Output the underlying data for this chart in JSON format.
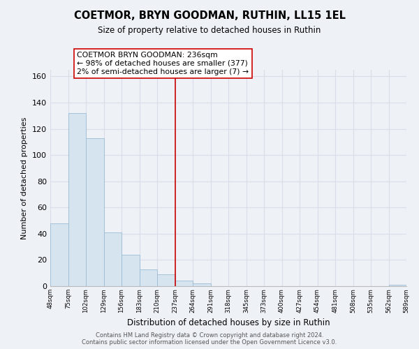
{
  "title": "COETMOR, BRYN GOODMAN, RUTHIN, LL15 1EL",
  "subtitle": "Size of property relative to detached houses in Ruthin",
  "xlabel": "Distribution of detached houses by size in Ruthin",
  "ylabel": "Number of detached properties",
  "bar_values": [
    48,
    132,
    113,
    41,
    24,
    13,
    9,
    4,
    2,
    0,
    0,
    0,
    0,
    0,
    0,
    0,
    0,
    0,
    0,
    1
  ],
  "bar_labels": [
    "48sqm",
    "75sqm",
    "102sqm",
    "129sqm",
    "156sqm",
    "183sqm",
    "210sqm",
    "237sqm",
    "264sqm",
    "291sqm",
    "318sqm",
    "345sqm",
    "373sqm",
    "400sqm",
    "427sqm",
    "454sqm",
    "481sqm",
    "508sqm",
    "535sqm",
    "562sqm",
    "589sqm"
  ],
  "bar_color": "#d6e4f0",
  "bar_edge_color": "#9bbcd4",
  "vline_color": "#cc0000",
  "annotation_title": "COETMOR BRYN GOODMAN: 236sqm",
  "annotation_line2": "← 98% of detached houses are smaller (377)",
  "annotation_line3": "2% of semi-detached houses are larger (7) →",
  "annotation_box_color": "#ffffff",
  "annotation_box_edge": "#cc0000",
  "ylim": [
    0,
    165
  ],
  "yticks": [
    0,
    20,
    40,
    60,
    80,
    100,
    120,
    140,
    160
  ],
  "background_color": "#eef2f7",
  "grid_color": "#d8dde8",
  "footer_line1": "Contains HM Land Registry data © Crown copyright and database right 2024.",
  "footer_line2": "Contains public sector information licensed under the Open Government Licence v3.0."
}
